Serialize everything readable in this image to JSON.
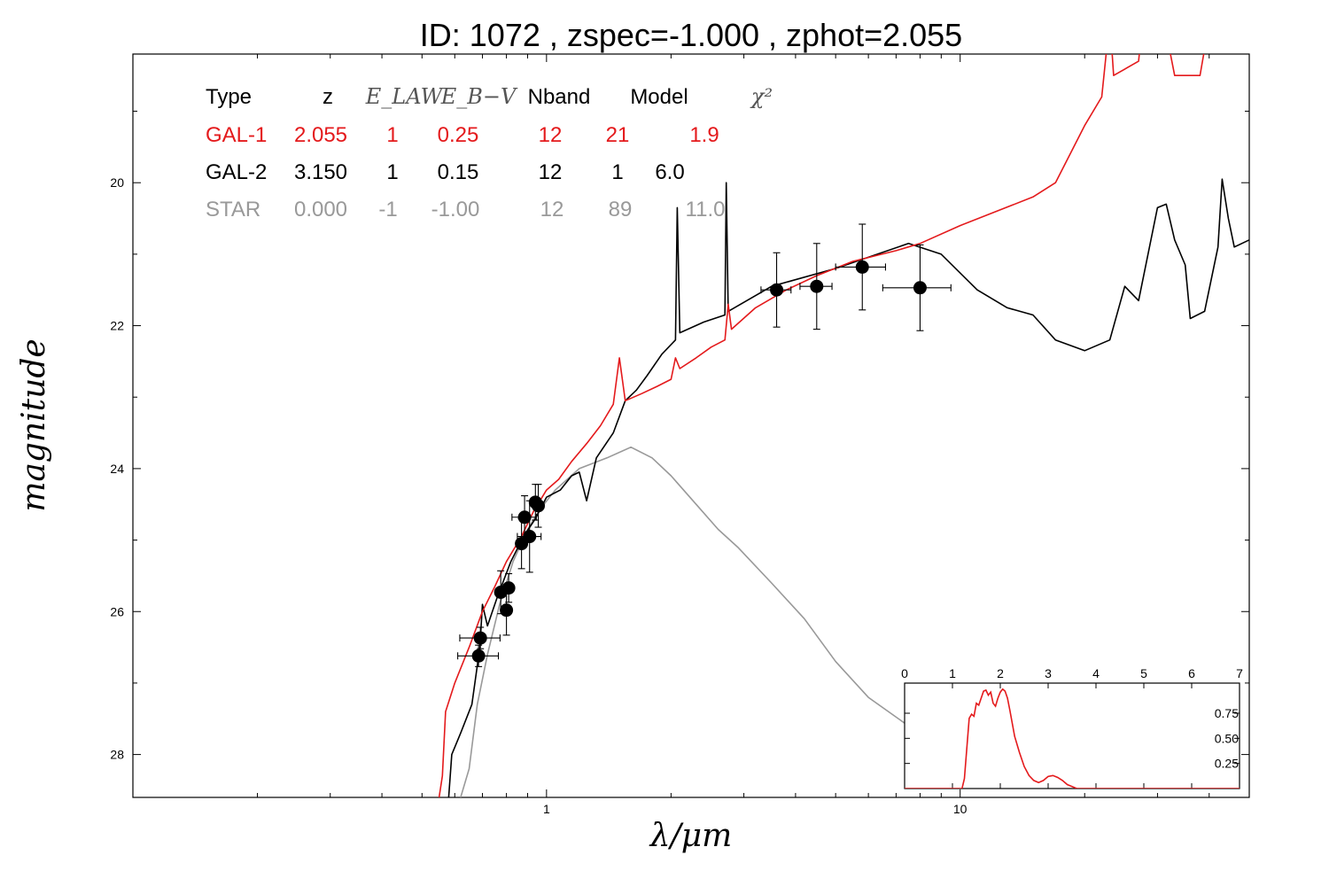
{
  "title": "ID:  1072  , zspec=-1.000 , zphot=2.055",
  "chart_data": [
    {
      "type": "line",
      "title": "ID:  1072  , zspec=-1.000 , zphot=2.055",
      "xlabel": "λ/μm",
      "ylabel": "magnitude",
      "xscale": "log",
      "xlim": [
        0.1,
        50
      ],
      "ylim": [
        28.6,
        18.2
      ],
      "x_ticks": [
        {
          "v": 1,
          "label": "1"
        },
        {
          "v": 10,
          "label": "10"
        }
      ],
      "y_ticks": [
        {
          "v": 20,
          "label": "20"
        },
        {
          "v": 22,
          "label": "22"
        },
        {
          "v": 24,
          "label": "24"
        },
        {
          "v": 26,
          "label": "26"
        },
        {
          "v": 28,
          "label": "28"
        }
      ],
      "grid": false,
      "legend": {
        "placement": "top-left",
        "headers": [
          "Type",
          "z",
          "E_LAW",
          "E_B−V",
          "Nband",
          "Model",
          "χ²"
        ],
        "rows": [
          {
            "type": "GAL-1",
            "z": "2.055",
            "elaw": "1",
            "ebv": "0.25",
            "nband": "12",
            "model": "21",
            "chi2": "1.9",
            "color": "#e41a1c"
          },
          {
            "type": "GAL-2",
            "z": "3.150",
            "elaw": "1",
            "ebv": "0.15",
            "nband": "12",
            "model": "1",
            "chi2": "6.0",
            "color": "#000000"
          },
          {
            "type": "STAR",
            "z": "0.000",
            "elaw": "-1",
            "ebv": "-1.00",
            "nband": "12",
            "model": "89",
            "chi2": "11.0",
            "color": "#999999"
          }
        ]
      },
      "series": [
        {
          "name": "GAL-1",
          "color": "#e41a1c",
          "points": [
            [
              0.55,
              28.6
            ],
            [
              0.56,
              28.3
            ],
            [
              0.57,
              27.4
            ],
            [
              0.6,
              27.0
            ],
            [
              0.65,
              26.5
            ],
            [
              0.7,
              26.0
            ],
            [
              0.75,
              25.65
            ],
            [
              0.8,
              25.3
            ],
            [
              0.87,
              24.95
            ],
            [
              0.93,
              24.6
            ],
            [
              1.0,
              24.3
            ],
            [
              1.07,
              24.15
            ],
            [
              1.15,
              23.9
            ],
            [
              1.25,
              23.65
            ],
            [
              1.35,
              23.4
            ],
            [
              1.45,
              23.1
            ],
            [
              1.5,
              22.45
            ],
            [
              1.55,
              23.05
            ],
            [
              1.7,
              22.95
            ],
            [
              1.85,
              22.85
            ],
            [
              2.0,
              22.75
            ],
            [
              2.05,
              22.45
            ],
            [
              2.1,
              22.6
            ],
            [
              2.3,
              22.45
            ],
            [
              2.5,
              22.3
            ],
            [
              2.7,
              22.2
            ],
            [
              2.75,
              21.7
            ],
            [
              2.8,
              22.05
            ],
            [
              3.2,
              21.75
            ],
            [
              3.8,
              21.5
            ],
            [
              4.5,
              21.3
            ],
            [
              5.5,
              21.1
            ],
            [
              7.0,
              20.95
            ],
            [
              8.0,
              20.85
            ],
            [
              10.0,
              20.6
            ],
            [
              15.0,
              20.2
            ],
            [
              17.0,
              20.0
            ],
            [
              20.0,
              19.2
            ],
            [
              22.0,
              18.8
            ],
            [
              23.0,
              17.7
            ],
            [
              23.5,
              18.5
            ],
            [
              27.0,
              18.3
            ],
            [
              28.0,
              17.4
            ],
            [
              31.0,
              17.7
            ],
            [
              33.0,
              18.5
            ],
            [
              38.0,
              18.5
            ],
            [
              41.0,
              17.4
            ],
            [
              43.0,
              18.1
            ],
            [
              50.0,
              17.3
            ]
          ]
        },
        {
          "name": "GAL-2",
          "color": "#000000",
          "points": [
            [
              0.58,
              28.6
            ],
            [
              0.59,
              28.0
            ],
            [
              0.62,
              27.7
            ],
            [
              0.66,
              27.3
            ],
            [
              0.69,
              26.5
            ],
            [
              0.7,
              25.9
            ],
            [
              0.72,
              26.2
            ],
            [
              0.76,
              25.8
            ],
            [
              0.82,
              25.3
            ],
            [
              0.88,
              24.95
            ],
            [
              0.94,
              24.7
            ],
            [
              1.0,
              24.4
            ],
            [
              1.08,
              24.3
            ],
            [
              1.15,
              24.1
            ],
            [
              1.2,
              24.05
            ],
            [
              1.25,
              24.45
            ],
            [
              1.32,
              23.85
            ],
            [
              1.45,
              23.5
            ],
            [
              1.55,
              23.05
            ],
            [
              1.65,
              22.9
            ],
            [
              1.75,
              22.7
            ],
            [
              1.9,
              22.4
            ],
            [
              2.05,
              22.2
            ],
            [
              2.07,
              20.35
            ],
            [
              2.1,
              22.1
            ],
            [
              2.4,
              21.95
            ],
            [
              2.7,
              21.85
            ],
            [
              2.72,
              20.0
            ],
            [
              2.75,
              21.8
            ],
            [
              3.5,
              21.45
            ],
            [
              5.0,
              21.2
            ],
            [
              7.5,
              20.85
            ],
            [
              9.0,
              21.0
            ],
            [
              11.0,
              21.5
            ],
            [
              13.0,
              21.75
            ],
            [
              15.0,
              21.85
            ],
            [
              17.0,
              22.2
            ],
            [
              20.0,
              22.35
            ],
            [
              23.0,
              22.2
            ],
            [
              25.0,
              21.45
            ],
            [
              27.0,
              21.65
            ],
            [
              30.0,
              20.35
            ],
            [
              31.5,
              20.3
            ],
            [
              33.0,
              20.8
            ],
            [
              35.0,
              21.15
            ],
            [
              36.0,
              21.9
            ],
            [
              39.0,
              21.8
            ],
            [
              42.0,
              20.9
            ],
            [
              43.0,
              19.95
            ],
            [
              44.5,
              20.5
            ],
            [
              46.0,
              20.9
            ],
            [
              50.0,
              20.8
            ]
          ]
        },
        {
          "name": "STAR",
          "color": "#999999",
          "points": [
            [
              0.62,
              28.6
            ],
            [
              0.65,
              28.2
            ],
            [
              0.68,
              27.3
            ],
            [
              0.72,
              26.6
            ],
            [
              0.77,
              25.9
            ],
            [
              0.83,
              25.3
            ],
            [
              0.9,
              24.85
            ],
            [
              0.97,
              24.55
            ],
            [
              1.05,
              24.3
            ],
            [
              1.2,
              24.0
            ],
            [
              1.4,
              23.85
            ],
            [
              1.6,
              23.7
            ],
            [
              1.8,
              23.85
            ],
            [
              2.0,
              24.1
            ],
            [
              2.3,
              24.5
            ],
            [
              2.6,
              24.85
            ],
            [
              2.9,
              25.1
            ],
            [
              3.5,
              25.6
            ],
            [
              4.2,
              26.1
            ],
            [
              5.0,
              26.7
            ],
            [
              6.0,
              27.2
            ],
            [
              7.5,
              27.6
            ],
            [
              10.0,
              28.1
            ]
          ]
        }
      ],
      "points": [
        {
          "x": 0.685,
          "y": 26.62,
          "xerr": [
            0.075,
            0.08
          ],
          "yerr": 0.15
        },
        {
          "x": 0.692,
          "y": 26.37,
          "xerr": [
            0.075,
            0.08
          ],
          "yerr": 0.15
        },
        {
          "x": 0.775,
          "y": 25.73,
          "xerr": [
            0.02,
            0.02
          ],
          "yerr": 0.3
        },
        {
          "x": 0.8,
          "y": 25.98,
          "xerr": [
            0.02,
            0.02
          ],
          "yerr": 0.35
        },
        {
          "x": 0.81,
          "y": 25.67,
          "xerr": [
            0.02,
            0.02
          ],
          "yerr": 0.2
        },
        {
          "x": 0.87,
          "y": 25.05,
          "xerr": [
            0.02,
            0.02
          ],
          "yerr": 0.35
        },
        {
          "x": 0.885,
          "y": 24.68,
          "xerr": [
            0.06,
            0.06
          ],
          "yerr": 0.3
        },
        {
          "x": 0.91,
          "y": 24.95,
          "xerr": [
            0.06,
            0.06
          ],
          "yerr": 0.5
        },
        {
          "x": 0.94,
          "y": 24.47,
          "xerr": [
            0.02,
            0.02
          ],
          "yerr": 0.25
        },
        {
          "x": 0.955,
          "y": 24.52,
          "xerr": [
            0.02,
            0.02
          ],
          "yerr": 0.3
        },
        {
          "x": 3.6,
          "y": 21.5,
          "xerr": [
            0.3,
            0.3
          ],
          "yerr": 0.52
        },
        {
          "x": 4.5,
          "y": 21.45,
          "xerr": [
            0.4,
            0.4
          ],
          "yerr": 0.6
        },
        {
          "x": 5.8,
          "y": 21.18,
          "xerr": [
            0.8,
            0.8
          ],
          "yerr": 0.6
        },
        {
          "x": 8.0,
          "y": 21.47,
          "xerr": [
            1.5,
            1.5
          ],
          "yerr": 0.6
        }
      ]
    },
    {
      "type": "line",
      "title": "",
      "xlim": [
        0,
        7
      ],
      "ylim": [
        0,
        1.05
      ],
      "x_ticks": [
        0,
        1,
        2,
        3,
        4,
        5,
        6,
        7
      ],
      "y_ticks": [
        {
          "v": 0.25,
          "label": "0.25"
        },
        {
          "v": 0.5,
          "label": "0.50"
        },
        {
          "v": 0.75,
          "label": "0.75"
        }
      ],
      "series": [
        {
          "name": "",
          "color": "#e41a1c",
          "points": [
            [
              0,
              0
            ],
            [
              1.2,
              0
            ],
            [
              1.25,
              0.1
            ],
            [
              1.3,
              0.4
            ],
            [
              1.35,
              0.7
            ],
            [
              1.4,
              0.74
            ],
            [
              1.45,
              0.72
            ],
            [
              1.5,
              0.85
            ],
            [
              1.55,
              0.83
            ],
            [
              1.6,
              0.9
            ],
            [
              1.65,
              0.97
            ],
            [
              1.7,
              0.98
            ],
            [
              1.75,
              0.93
            ],
            [
              1.8,
              0.96
            ],
            [
              1.85,
              0.85
            ],
            [
              1.9,
              0.82
            ],
            [
              1.95,
              0.9
            ],
            [
              2.0,
              0.96
            ],
            [
              2.05,
              0.99
            ],
            [
              2.1,
              0.97
            ],
            [
              2.15,
              0.9
            ],
            [
              2.2,
              0.78
            ],
            [
              2.3,
              0.52
            ],
            [
              2.4,
              0.36
            ],
            [
              2.5,
              0.22
            ],
            [
              2.6,
              0.13
            ],
            [
              2.7,
              0.08
            ],
            [
              2.8,
              0.06
            ],
            [
              2.9,
              0.08
            ],
            [
              3.0,
              0.12
            ],
            [
              3.1,
              0.13
            ],
            [
              3.2,
              0.11
            ],
            [
              3.3,
              0.08
            ],
            [
              3.4,
              0.04
            ],
            [
              3.5,
              0.02
            ],
            [
              3.6,
              0.0
            ],
            [
              7,
              0
            ]
          ]
        }
      ]
    }
  ]
}
